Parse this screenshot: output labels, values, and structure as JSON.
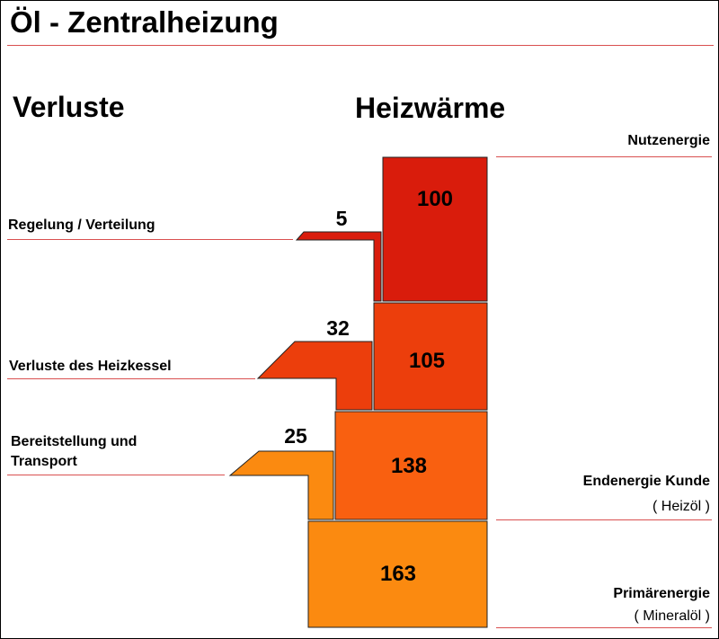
{
  "title": "Öl - Zentralheizung",
  "headings": {
    "losses": "Verluste",
    "heat": "Heizwärme"
  },
  "left_labels": {
    "regelung": "Regelung / Verteilung",
    "heizkessel": "Verluste des Heizkessel",
    "bereitstellung_1": "Bereitstellung und",
    "bereitstellung_2": "Transport"
  },
  "right_labels": {
    "nutzenergie": "Nutzenergie",
    "endenergie": "Endenergie Kunde",
    "endenergie_sub": "( Heizöl )",
    "primaerenergie": "Primärenergie",
    "primaerenergie_sub": "( Mineralöl )"
  },
  "levels": [
    {
      "label": "100",
      "value": 100,
      "color": "#d91c0c"
    },
    {
      "label": "105",
      "value": 105,
      "color": "#ec3e0c"
    },
    {
      "label": "138",
      "value": 138,
      "color": "#f96010"
    },
    {
      "label": "163",
      "value": 163,
      "color": "#fb8a10"
    }
  ],
  "losses": [
    {
      "label": "5",
      "value": 5,
      "color": "#d91c0c"
    },
    {
      "label": "32",
      "value": 32,
      "color": "#ec3e0c"
    },
    {
      "label": "25",
      "value": 25,
      "color": "#fb8a10"
    }
  ]
}
